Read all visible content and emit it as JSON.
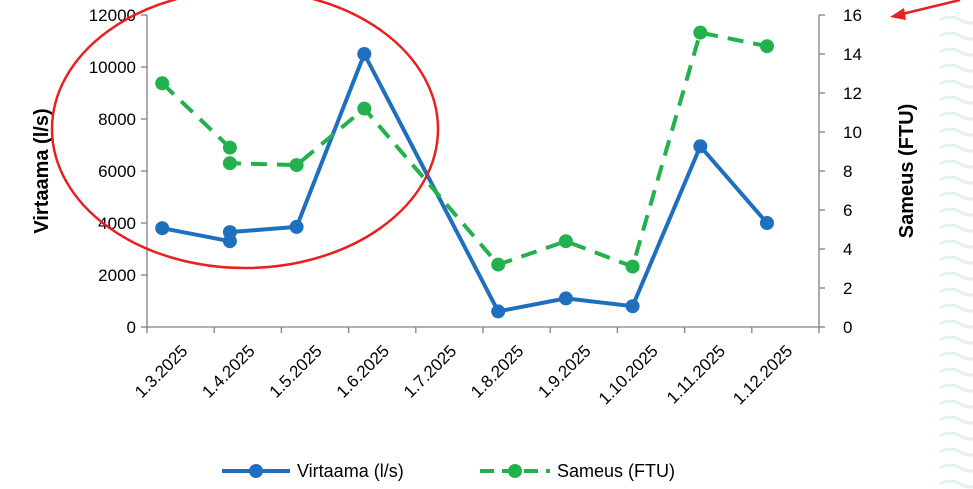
{
  "chart_data": {
    "type": "line",
    "x": [
      "1.3.2025",
      "1.4.2025",
      "1.5.2025",
      "1.6.2025",
      "1.7.2025",
      "1.8.2025",
      "1.9.2025",
      "1.10.2025",
      "1.11.2025",
      "1.12.2025"
    ],
    "series": [
      {
        "name": "Virtaama (l/s)",
        "axis": "left",
        "color": "#1F6FBF",
        "style": "solid",
        "points": [
          {
            "x": "2025-03-08",
            "y": 3800
          },
          {
            "x": "2025-04-08",
            "y": 3300
          },
          {
            "x": "2025-04-08",
            "y": 3650
          },
          {
            "x": "2025-05-08",
            "y": 3850
          },
          {
            "x": "2025-06-08",
            "y": 10500
          },
          {
            "x": "2025-08-08",
            "y": 600
          },
          {
            "x": "2025-09-08",
            "y": 1100
          },
          {
            "x": "2025-10-08",
            "y": 800
          },
          {
            "x": "2025-11-08",
            "y": 6950
          },
          {
            "x": "2025-12-08",
            "y": 4000
          }
        ]
      },
      {
        "name": "Sameus (FTU)",
        "axis": "right",
        "color": "#22B14C",
        "style": "dashed",
        "points": [
          {
            "x": "2025-03-08",
            "y": 12.5
          },
          {
            "x": "2025-04-08",
            "y": 9.2
          },
          {
            "x": "2025-04-08",
            "y": 8.4
          },
          {
            "x": "2025-05-08",
            "y": 8.3
          },
          {
            "x": "2025-06-08",
            "y": 11.2
          },
          {
            "x": "2025-08-08",
            "y": 3.2
          },
          {
            "x": "2025-09-08",
            "y": 4.4
          },
          {
            "x": "2025-10-08",
            "y": 3.1
          },
          {
            "x": "2025-11-08",
            "y": 15.1
          },
          {
            "x": "2025-12-08",
            "y": 14.4
          }
        ]
      }
    ],
    "ylabel": "Virtaama (l/s)",
    "y2label": "Sameus (FTU)",
    "ylim": [
      0,
      12000
    ],
    "y2lim": [
      0,
      16
    ],
    "yticks": [
      "0",
      "2000",
      "4000",
      "6000",
      "8000",
      "10000",
      "12000"
    ],
    "y2ticks": [
      "0",
      "2",
      "4",
      "6",
      "8",
      "10",
      "12",
      "14",
      "16"
    ],
    "grid": false,
    "legend_placement": "bottom-center",
    "annotations": [
      {
        "type": "ellipse",
        "color": "#E8201F",
        "description": "red circle around Mar–Jun period"
      },
      {
        "type": "arrow",
        "color": "#E8201F",
        "description": "red arrow pointing at right axis top value"
      }
    ]
  }
}
